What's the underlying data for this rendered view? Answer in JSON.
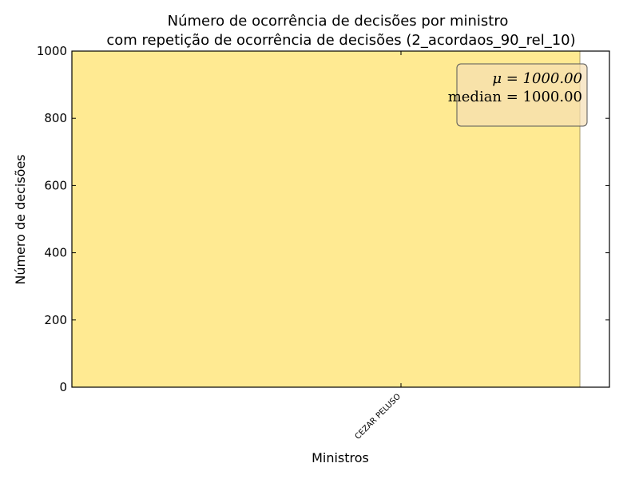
{
  "chart_data": {
    "type": "bar",
    "title_line1": "Número de ocorrência de decisões por ministro",
    "title_line2": "com repetição de ocorrência de decisões (2_acordaos_90_rel_10)",
    "xlabel": "Ministros",
    "ylabel": "Número de decisões",
    "categories": [
      "CEZAR PELUSO"
    ],
    "values": [
      1000
    ],
    "ylim": [
      0,
      1000
    ],
    "yticks": [
      0,
      200,
      400,
      600,
      800,
      1000
    ],
    "ytick_labels": [
      "0",
      "200",
      "400",
      "600",
      "800",
      "1000"
    ],
    "bar_color": "#ffea92",
    "bar_edge_color": "#a89a66",
    "stats_box": {
      "mean_text": "μ = 1000.00",
      "median_text": "median = 1000.00",
      "fill_color": "#f5deb3"
    },
    "grid": false
  }
}
